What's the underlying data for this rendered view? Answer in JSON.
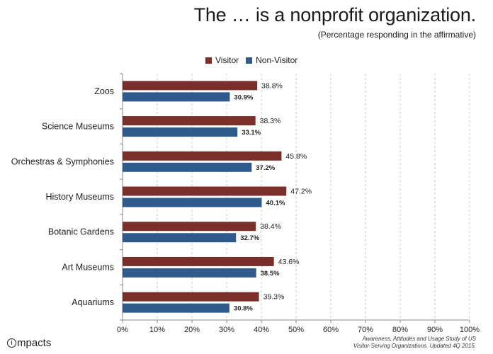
{
  "header": {
    "title": "The … is a nonprofit organization.",
    "subtitle": "(Percentage responding in the affirmative)"
  },
  "legend": {
    "visitor": "Visitor",
    "non_visitor": "Non-Visitor"
  },
  "colors": {
    "visitor": "#7b2f2b",
    "non_visitor": "#2f5b8c"
  },
  "chart_data": {
    "type": "bar",
    "orientation": "horizontal",
    "title": "The … is a nonprofit organization.",
    "subtitle": "(Percentage responding in the affirmative)",
    "categories": [
      "Zoos",
      "Science Museums",
      "Orchestras & Symphonies",
      "History Museums",
      "Botanic Gardens",
      "Art Museums",
      "Aquariums"
    ],
    "series": [
      {
        "name": "Visitor",
        "values": [
          38.8,
          38.3,
          45.8,
          47.2,
          38.4,
          43.6,
          39.3
        ],
        "labels": [
          "38.8%",
          "38.3%",
          "45.8%",
          "47.2%",
          "38.4%",
          "43.6%",
          "39.3%"
        ]
      },
      {
        "name": "Non-Visitor",
        "values": [
          30.9,
          33.1,
          37.2,
          40.1,
          32.7,
          38.5,
          30.8
        ],
        "labels": [
          "30.9%",
          "33.1%",
          "37.2%",
          "40.1%",
          "32.7%",
          "38.5%",
          "30.8%"
        ]
      }
    ],
    "xlim": [
      0,
      100
    ],
    "xticks": [
      "0%",
      "10%",
      "20%",
      "30%",
      "40%",
      "50%",
      "60%",
      "70%",
      "80%",
      "90%",
      "100%"
    ],
    "grid": true,
    "legend_position": "top"
  },
  "footer": {
    "logo_text": "mpacts",
    "logo_mark": "i",
    "source_line1": "Awareness, Attitudes and Usage Study of US",
    "source_line2": "Visitor-Serving Organizations. Updated 4Q 2015."
  }
}
